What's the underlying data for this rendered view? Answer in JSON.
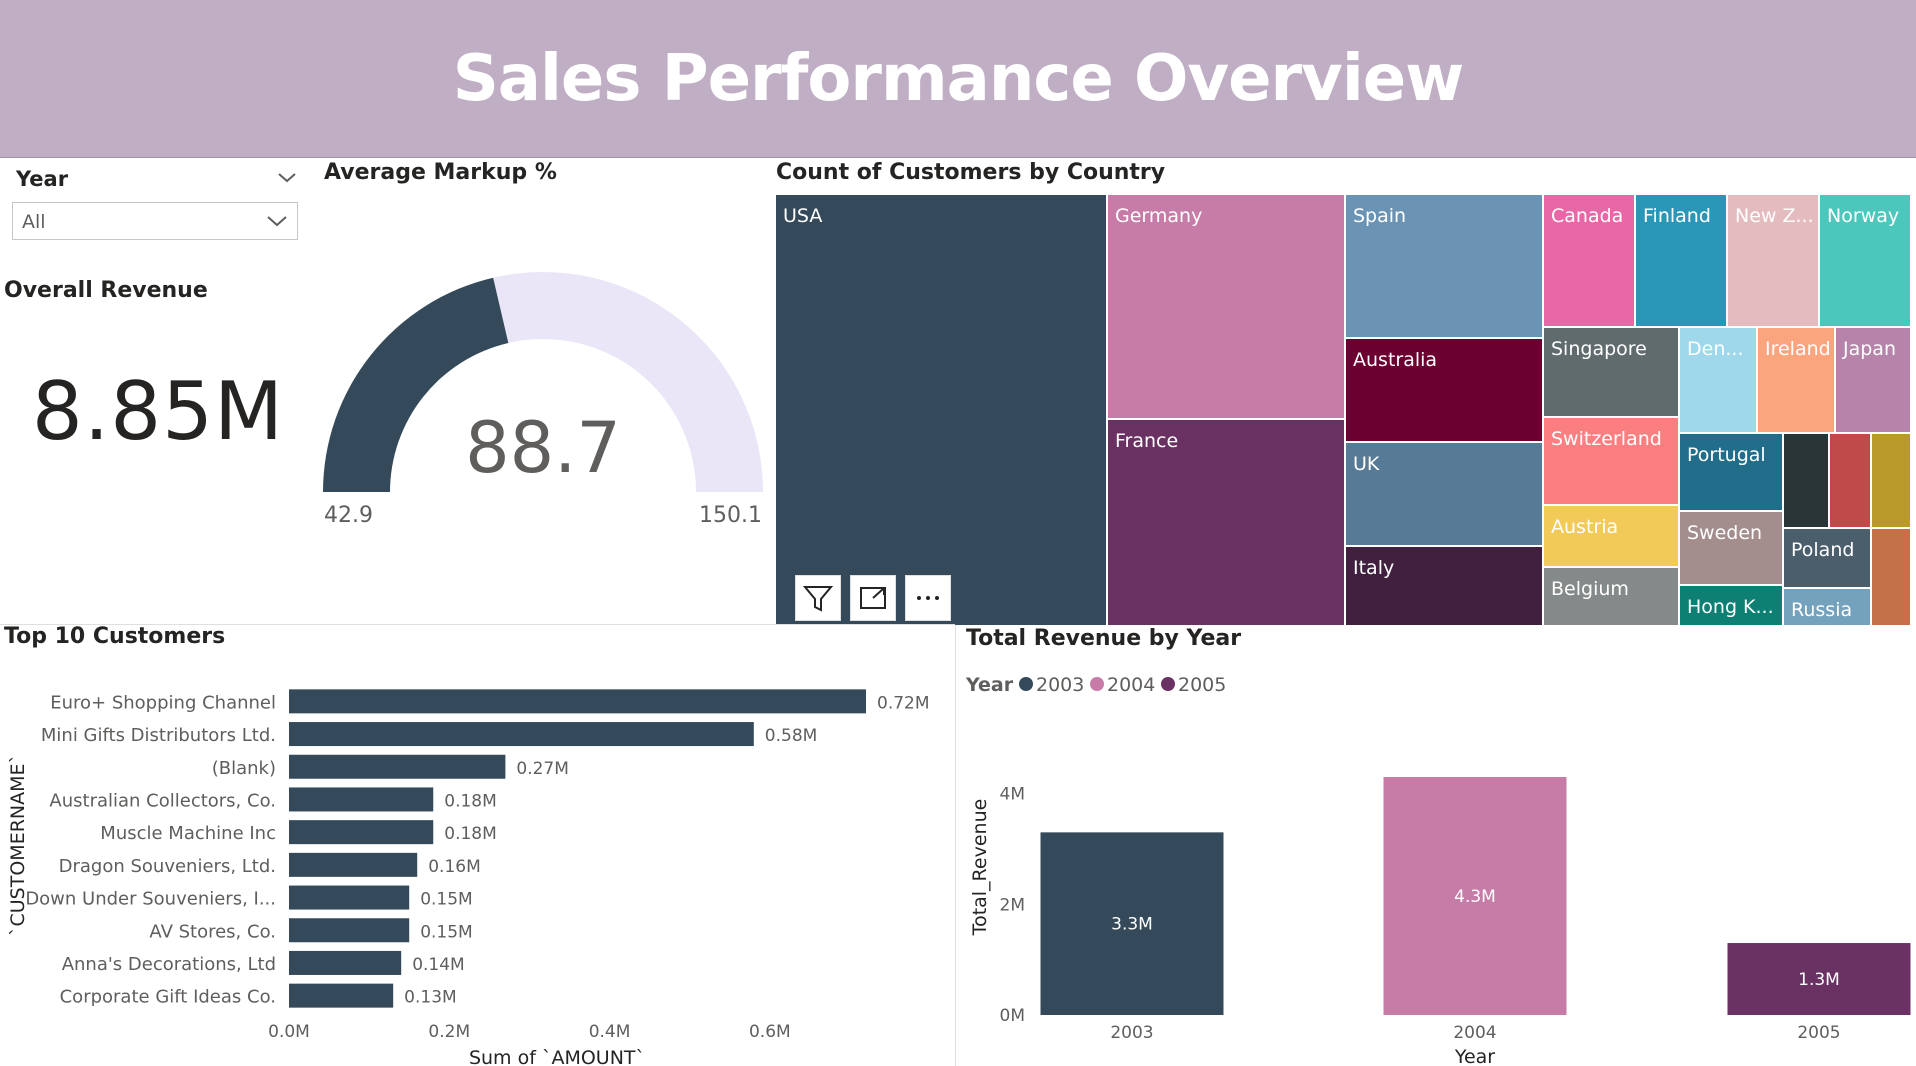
{
  "header": {
    "title": "Sales Performance Overview"
  },
  "slicer": {
    "label": "Year",
    "value": "All"
  },
  "kpi": {
    "title": "Overall Revenue",
    "value": "8.85M"
  },
  "colors": {
    "banner": "#c0aec4",
    "dark": "#344a5a",
    "pink": "#c67ca7",
    "purple": "#6a3263",
    "gauge_track": "#eae6f7"
  },
  "icons": {
    "filter": "filter-icon",
    "focus": "focus-mode-icon",
    "more": "more-options-icon",
    "chevron": "chevron-down-icon"
  },
  "chart_data": [
    {
      "type": "gauge",
      "title": "Average Markup %",
      "value": 88.7,
      "value_label": "88.7",
      "min": 42.9,
      "max": 150.1,
      "min_label": "42.9",
      "max_label": "150.1"
    },
    {
      "type": "treemap",
      "title": "Count of Customers by Country",
      "items": [
        {
          "label": "USA",
          "color": "#344a5a"
        },
        {
          "label": "Germany",
          "color": "#c67ca7"
        },
        {
          "label": "France",
          "color": "#6a3263"
        },
        {
          "label": "Spain",
          "color": "#6b94b4"
        },
        {
          "label": "Australia",
          "color": "#6b0030"
        },
        {
          "label": "UK",
          "color": "#577a96"
        },
        {
          "label": "Italy",
          "color": "#41203f"
        },
        {
          "label": "Canada",
          "color": "#ea67a7"
        },
        {
          "label": "Finland",
          "color": "#2b97b8"
        },
        {
          "label": "New Z...",
          "color": "#e4bcbf"
        },
        {
          "label": "Norway",
          "color": "#4cc7bb"
        },
        {
          "label": "Singapore",
          "color": "#5f6b6d"
        },
        {
          "label": "Den...",
          "color": "#9fd8ea"
        },
        {
          "label": "Ireland",
          "color": "#fba57f"
        },
        {
          "label": "Japan",
          "color": "#b684ab"
        },
        {
          "label": "Switzerland",
          "color": "#fb7f81"
        },
        {
          "label": "Portugal",
          "color": "#226d89"
        },
        {
          "label": "",
          "color": "#293537"
        },
        {
          "label": "",
          "color": "#c04a4a"
        },
        {
          "label": "",
          "color": "#b9992a"
        },
        {
          "label": "Austria",
          "color": "#f2ca58"
        },
        {
          "label": "Sweden",
          "color": "#a38d8d"
        },
        {
          "label": "Poland",
          "color": "#4b5e6c"
        },
        {
          "label": "",
          "color": "#c4714a"
        },
        {
          "label": "Belgium",
          "color": "#838a89"
        },
        {
          "label": "Hong K...",
          "color": "#0e7f73"
        },
        {
          "label": "Russia",
          "color": "#74a1bb"
        }
      ]
    },
    {
      "type": "bar",
      "title": "Top 10 Customers",
      "ylabel": "`CUSTOMERNAME`",
      "xlabel": "Sum of `AMOUNT`",
      "categories": [
        "Euro+ Shopping Channel",
        "Mini Gifts Distributors Ltd.",
        "(Blank)",
        "Australian Collectors, Co.",
        "Muscle Machine Inc",
        "Dragon Souveniers, Ltd.",
        "Down Under Souveniers, I...",
        "AV Stores, Co.",
        "Anna's Decorations, Ltd",
        "Corporate Gift Ideas Co."
      ],
      "values": [
        0.72,
        0.58,
        0.27,
        0.18,
        0.18,
        0.16,
        0.15,
        0.15,
        0.14,
        0.13
      ],
      "data_labels": [
        "0.72M",
        "0.58M",
        "0.27M",
        "0.18M",
        "0.18M",
        "0.16M",
        "0.15M",
        "0.15M",
        "0.14M",
        "0.13M"
      ],
      "xticks": [
        "0.0M",
        "0.2M",
        "0.4M",
        "0.6M"
      ],
      "xlim": [
        0,
        0.72
      ]
    },
    {
      "type": "bar",
      "title": "Total Revenue by Year",
      "legend_title": "Year",
      "xlabel": "Year",
      "ylabel": "Total_Revenue",
      "categories": [
        "2003",
        "2004",
        "2005"
      ],
      "values": [
        3.3,
        4.3,
        1.3
      ],
      "data_labels": [
        "3.3M",
        "4.3M",
        "1.3M"
      ],
      "yticks": [
        "0M",
        "2M",
        "4M"
      ],
      "ylim": [
        0,
        4.3
      ]
    }
  ]
}
